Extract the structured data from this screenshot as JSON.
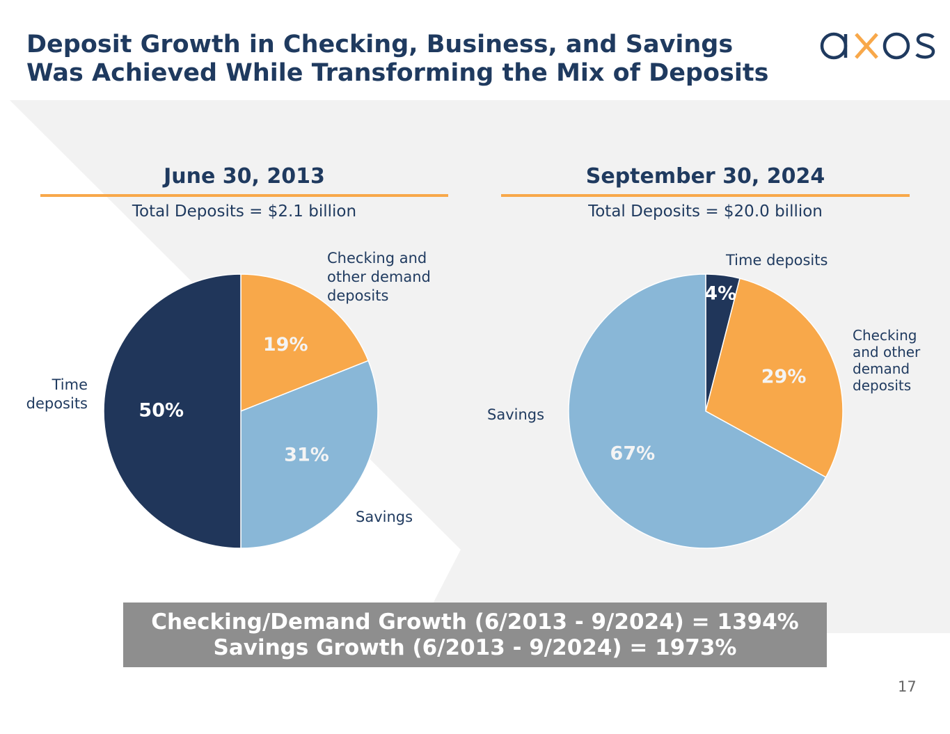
{
  "page": {
    "title_lines": [
      "Deposit Growth in Checking, Business, and Savings",
      "Was Achieved While Transforming the Mix of Deposits"
    ],
    "logo_text": "axos",
    "page_number": "17"
  },
  "colors": {
    "navy": "#1f3a5f",
    "time_deposits": "#20365a",
    "checking": "#f8a84a",
    "savings": "#89b7d7",
    "accent_rule": "#f8a84a",
    "summary_bg": "#8e8e8e"
  },
  "panels": [
    {
      "date": "June 30, 2013",
      "total": "Total Deposits = $2.1 billion"
    },
    {
      "date": "September 30, 2024",
      "total": "Total Deposits = $20.0 billion"
    }
  ],
  "labels": {
    "p1_checking": [
      "Checking and",
      "other demand",
      "deposits"
    ],
    "p1_time": [
      "Time",
      "deposits"
    ],
    "p1_savings": [
      "Savings"
    ],
    "p2_time": [
      "Time deposits"
    ],
    "p2_checking": [
      "Checking",
      "and other",
      "demand",
      "deposits"
    ],
    "p2_savings": [
      "Savings"
    ]
  },
  "summary": {
    "line1": "Checking/Demand Growth (6/2013 - 9/2024) = 1394%",
    "line2": "Savings Growth (6/2013 - 9/2024) = 1973%"
  },
  "chart_data": [
    {
      "type": "pie",
      "title": "June 30, 2013",
      "subtitle": "Total Deposits = $2.1 billion",
      "slices": [
        {
          "name": "Checking and other demand deposits",
          "value": 19,
          "label": "19%",
          "color": "#f8a84a"
        },
        {
          "name": "Savings",
          "value": 31,
          "label": "31%",
          "color": "#89b7d7"
        },
        {
          "name": "Time deposits",
          "value": 50,
          "label": "50%",
          "color": "#20365a"
        }
      ]
    },
    {
      "type": "pie",
      "title": "September 30, 2024",
      "subtitle": "Total Deposits = $20.0 billion",
      "slices": [
        {
          "name": "Time deposits",
          "value": 4,
          "label": "4%",
          "color": "#20365a"
        },
        {
          "name": "Checking and other demand deposits",
          "value": 29,
          "label": "29%",
          "color": "#f8a84a"
        },
        {
          "name": "Savings",
          "value": 67,
          "label": "67%",
          "color": "#89b7d7"
        }
      ]
    }
  ]
}
